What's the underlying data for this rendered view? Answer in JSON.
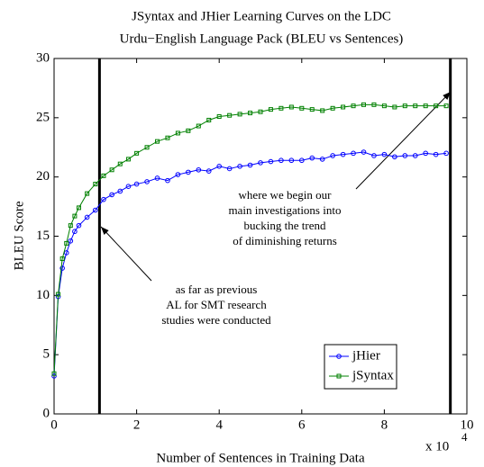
{
  "chart_data": {
    "type": "line",
    "title": [
      "JSyntax and JHier Learning Curves on the LDC",
      "Urdu−English Language Pack (BLEU vs Sentences)"
    ],
    "xlabel": "Number of Sentences in Training Data",
    "ylabel": "BLEU Score",
    "x_scale_label": "x 10",
    "x_scale_exponent": "4",
    "x": [
      0,
      0.1,
      0.2,
      0.3,
      0.4,
      0.5,
      0.6,
      0.8,
      1.0,
      1.2,
      1.4,
      1.6,
      1.8,
      2.0,
      2.25,
      2.5,
      2.75,
      3.0,
      3.25,
      3.5,
      3.75,
      4.0,
      4.25,
      4.5,
      4.75,
      5.0,
      5.25,
      5.5,
      5.75,
      6.0,
      6.25,
      6.5,
      6.75,
      7.0,
      7.25,
      7.5,
      7.75,
      8.0,
      8.25,
      8.5,
      8.75,
      9.0,
      9.25,
      9.5
    ],
    "series": [
      {
        "name": "jHier",
        "color": "#0000ff",
        "marker": "circle",
        "values": [
          3.2,
          9.9,
          12.3,
          13.6,
          14.6,
          15.4,
          15.9,
          16.6,
          17.2,
          18.1,
          18.5,
          18.8,
          19.2,
          19.4,
          19.6,
          19.9,
          19.7,
          20.2,
          20.4,
          20.6,
          20.5,
          20.9,
          20.7,
          20.9,
          21.0,
          21.2,
          21.3,
          21.4,
          21.4,
          21.4,
          21.6,
          21.5,
          21.8,
          21.9,
          22.0,
          22.1,
          21.8,
          21.9,
          21.7,
          21.8,
          21.8,
          22.0,
          21.9,
          22.0
        ]
      },
      {
        "name": "jSyntax",
        "color": "#008000",
        "marker": "square",
        "values": [
          3.4,
          10.1,
          13.1,
          14.4,
          15.9,
          16.7,
          17.4,
          18.6,
          19.4,
          20.1,
          20.6,
          21.1,
          21.5,
          22.0,
          22.5,
          23.0,
          23.3,
          23.7,
          23.9,
          24.3,
          24.8,
          25.1,
          25.2,
          25.3,
          25.4,
          25.5,
          25.7,
          25.8,
          25.9,
          25.8,
          25.7,
          25.6,
          25.8,
          25.9,
          26.0,
          26.1,
          26.1,
          26.0,
          25.9,
          26.0,
          26.0,
          26.0,
          26.0,
          26.0
        ]
      }
    ],
    "xlim": [
      0,
      10
    ],
    "xticks": [
      0,
      2,
      4,
      6,
      8,
      10
    ],
    "ylim": [
      0,
      30
    ],
    "yticks": [
      0,
      5,
      10,
      15,
      20,
      25,
      30
    ],
    "grid": false,
    "legend": "lower right",
    "reference_lines": [
      1.1,
      9.6
    ],
    "annotations": [
      [
        "where we begin our",
        "main investigations into",
        "bucking the trend",
        "of diminishing returns"
      ],
      [
        "as far as previous",
        "AL for SMT research",
        "studies were conducted"
      ]
    ]
  }
}
